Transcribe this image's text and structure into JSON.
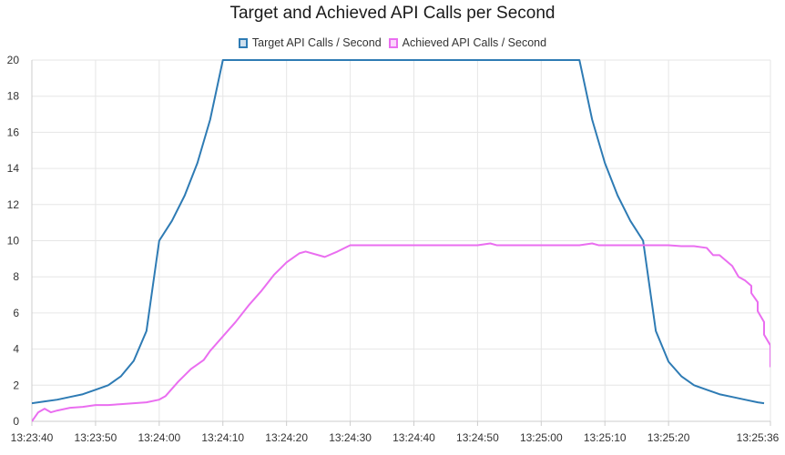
{
  "title": "Target and Achieved API Calls per Second",
  "chart_data": {
    "type": "line",
    "title": "Target and Achieved API Calls per Second",
    "xlabel": "",
    "ylabel": "",
    "x_range": [
      "13:23:40",
      "13:25:36"
    ],
    "ylim": [
      0,
      20
    ],
    "grid": true,
    "legend_position": "top-center",
    "x_tick_labels": [
      "13:23:40",
      "13:23:50",
      "13:24:00",
      "13:24:10",
      "13:24:20",
      "13:24:30",
      "13:24:40",
      "13:24:50",
      "13:25:00",
      "13:25:10",
      "13:25:20",
      "13:25:36"
    ],
    "y_tick_labels": [
      "0",
      "2",
      "4",
      "6",
      "8",
      "10",
      "12",
      "14",
      "16",
      "18",
      "20"
    ],
    "series": [
      {
        "name": "Target API Calls / Second",
        "color": "#2e7bb4",
        "fill": "#cfe0ee",
        "points": [
          [
            "13:23:40",
            1.0
          ],
          [
            "13:23:42",
            1.1
          ],
          [
            "13:23:44",
            1.2
          ],
          [
            "13:23:46",
            1.35
          ],
          [
            "13:23:48",
            1.5
          ],
          [
            "13:23:50",
            1.75
          ],
          [
            "13:23:52",
            2.0
          ],
          [
            "13:23:54",
            2.5
          ],
          [
            "13:23:56",
            3.35
          ],
          [
            "13:23:58",
            5.0
          ],
          [
            "13:24:00",
            10.0
          ],
          [
            "13:24:02",
            11.1
          ],
          [
            "13:24:04",
            12.5
          ],
          [
            "13:24:06",
            14.3
          ],
          [
            "13:24:08",
            16.7
          ],
          [
            "13:24:10",
            20.0
          ],
          [
            "13:25:06",
            20.0
          ],
          [
            "13:25:08",
            16.7
          ],
          [
            "13:25:10",
            14.3
          ],
          [
            "13:25:12",
            12.5
          ],
          [
            "13:25:14",
            11.1
          ],
          [
            "13:25:16",
            10.0
          ],
          [
            "13:25:18",
            5.0
          ],
          [
            "13:25:20",
            3.3
          ],
          [
            "13:25:22",
            2.5
          ],
          [
            "13:25:24",
            2.0
          ],
          [
            "13:25:26",
            1.75
          ],
          [
            "13:25:28",
            1.5
          ],
          [
            "13:25:30",
            1.35
          ],
          [
            "13:25:32",
            1.2
          ],
          [
            "13:25:34",
            1.05
          ],
          [
            "13:25:35",
            1.0
          ]
        ]
      },
      {
        "name": "Achieved API Calls / Second",
        "color": "#ea6ef0",
        "fill": "#fbd6fc",
        "points": [
          [
            "13:23:40",
            0.0
          ],
          [
            "13:23:41",
            0.5
          ],
          [
            "13:23:42",
            0.7
          ],
          [
            "13:23:43",
            0.5
          ],
          [
            "13:23:44",
            0.6
          ],
          [
            "13:23:46",
            0.75
          ],
          [
            "13:23:48",
            0.8
          ],
          [
            "13:23:50",
            0.9
          ],
          [
            "13:23:52",
            0.9
          ],
          [
            "13:23:54",
            0.95
          ],
          [
            "13:23:56",
            1.0
          ],
          [
            "13:23:58",
            1.05
          ],
          [
            "13:24:00",
            1.2
          ],
          [
            "13:24:01",
            1.4
          ],
          [
            "13:24:03",
            2.2
          ],
          [
            "13:24:05",
            2.9
          ],
          [
            "13:24:07",
            3.4
          ],
          [
            "13:24:08",
            3.9
          ],
          [
            "13:24:10",
            4.7
          ],
          [
            "13:24:12",
            5.5
          ],
          [
            "13:24:14",
            6.4
          ],
          [
            "13:24:16",
            7.2
          ],
          [
            "13:24:18",
            8.1
          ],
          [
            "13:24:20",
            8.8
          ],
          [
            "13:24:22",
            9.3
          ],
          [
            "13:24:23",
            9.4
          ],
          [
            "13:24:25",
            9.2
          ],
          [
            "13:24:26",
            9.1
          ],
          [
            "13:24:28",
            9.4
          ],
          [
            "13:24:30",
            9.75
          ],
          [
            "13:24:40",
            9.75
          ],
          [
            "13:24:50",
            9.75
          ],
          [
            "13:24:52",
            9.85
          ],
          [
            "13:24:53",
            9.75
          ],
          [
            "13:25:00",
            9.75
          ],
          [
            "13:25:06",
            9.75
          ],
          [
            "13:25:08",
            9.85
          ],
          [
            "13:25:09",
            9.75
          ],
          [
            "13:25:20",
            9.75
          ],
          [
            "13:25:22",
            9.7
          ],
          [
            "13:25:24",
            9.7
          ],
          [
            "13:25:26",
            9.6
          ],
          [
            "13:25:27",
            9.2
          ],
          [
            "13:25:28",
            9.2
          ],
          [
            "13:25:30",
            8.6
          ],
          [
            "13:25:31",
            8.0
          ],
          [
            "13:25:32",
            7.8
          ],
          [
            "13:25:33",
            7.5
          ],
          [
            "13:25:33",
            7.1
          ],
          [
            "13:25:34",
            6.6
          ],
          [
            "13:25:34",
            6.1
          ],
          [
            "13:25:35",
            5.5
          ],
          [
            "13:25:35",
            4.8
          ],
          [
            "13:25:36",
            4.2
          ],
          [
            "13:25:36",
            3.0
          ]
        ]
      }
    ]
  }
}
